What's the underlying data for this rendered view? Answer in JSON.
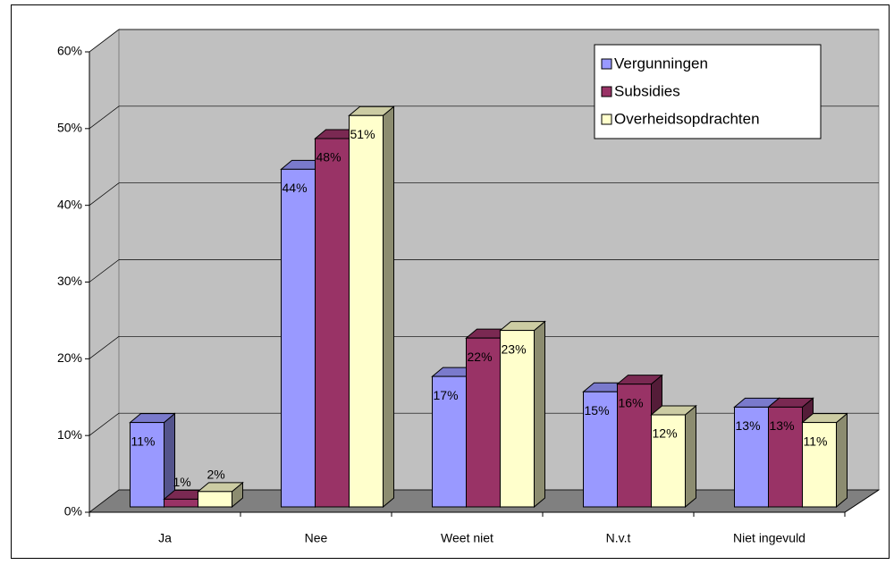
{
  "chart_data": {
    "type": "bar3d",
    "categories": [
      "Ja",
      "Nee",
      "Weet niet",
      "N.v.t",
      "Niet ingevuld"
    ],
    "series": [
      {
        "name": "Vergunningen",
        "color": "#9999ff",
        "values": [
          11,
          44,
          17,
          15,
          13
        ],
        "value_labels": [
          "11%",
          "44%",
          "17%",
          "15%",
          "13%"
        ]
      },
      {
        "name": "Subsidies",
        "color": "#993366",
        "values": [
          1,
          48,
          22,
          16,
          13
        ],
        "value_labels": [
          "1%",
          "48%",
          "22%",
          "16%",
          "13%"
        ]
      },
      {
        "name": "Overheidsopdrachten",
        "color": "#ffffcc",
        "values": [
          2,
          51,
          23,
          12,
          11
        ],
        "value_labels": [
          "2%",
          "51%",
          "23%",
          "12%",
          "11%"
        ]
      }
    ],
    "ylim": [
      0,
      60
    ],
    "yticks": [
      {
        "value": 0,
        "label": "0%"
      },
      {
        "value": 10,
        "label": "10%"
      },
      {
        "value": 20,
        "label": "20%"
      },
      {
        "value": 30,
        "label": "30%"
      },
      {
        "value": 40,
        "label": "40%"
      },
      {
        "value": 50,
        "label": "50%"
      },
      {
        "value": 60,
        "label": "60%"
      }
    ],
    "grid": true,
    "legend": "upper right"
  }
}
